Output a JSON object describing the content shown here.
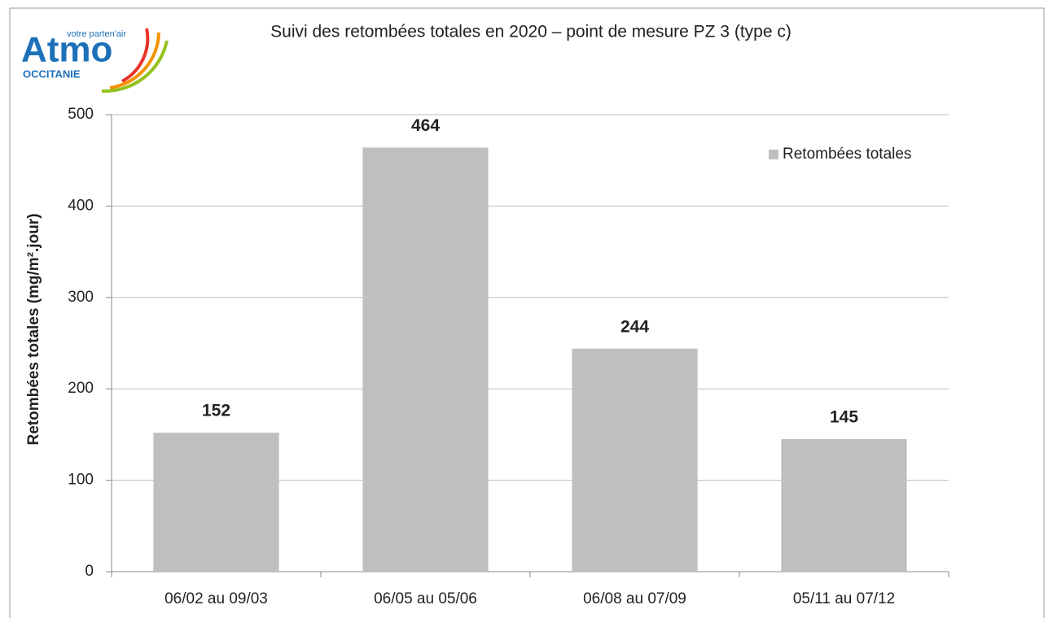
{
  "chart_data": {
    "type": "bar",
    "title": "Suivi des retombées totales en 2020 – point de mesure PZ 3 (type c)",
    "logo": {
      "name": "Atmo",
      "tagline": "votre parten'air",
      "region": "OCCITANIE"
    },
    "y_label": "Retombées totales (mg/m².jour)",
    "categories": [
      "06/02 au 09/03",
      "06/05 au 05/06",
      "06/08 au 07/09",
      "05/11 au 07/12"
    ],
    "series": [
      {
        "name": "Retombées totales",
        "color": "#bfbfbf",
        "values": [
          152,
          464,
          244,
          145
        ]
      }
    ],
    "ylim": [
      0,
      500
    ],
    "yticks": [
      0,
      100,
      200,
      300,
      400,
      500
    ],
    "grid": true,
    "legend": "upper right",
    "data_labels": true
  }
}
